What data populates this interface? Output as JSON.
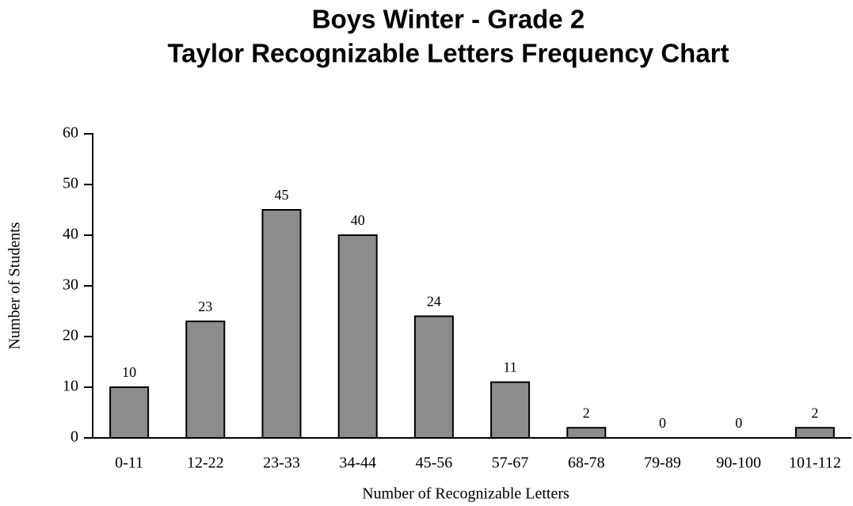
{
  "chart_data": {
    "type": "bar",
    "title": [
      "Boys Winter - Grade 2",
      "Taylor Recognizable Letters Frequency Chart"
    ],
    "x_label": "Number of Recognizable Letters",
    "y_label": "Number of Students",
    "categories": [
      "0-11",
      "12-22",
      "23-33",
      "34-44",
      "45-56",
      "57-67",
      "68-78",
      "79-89",
      "90-100",
      "101-112"
    ],
    "values": [
      10,
      23,
      45,
      40,
      24,
      11,
      2,
      0,
      0,
      2
    ],
    "color": "#8c8c8c",
    "ylim": [
      0,
      60
    ],
    "yticks": [
      0,
      10,
      20,
      30,
      40,
      50,
      60
    ],
    "grid": false
  }
}
